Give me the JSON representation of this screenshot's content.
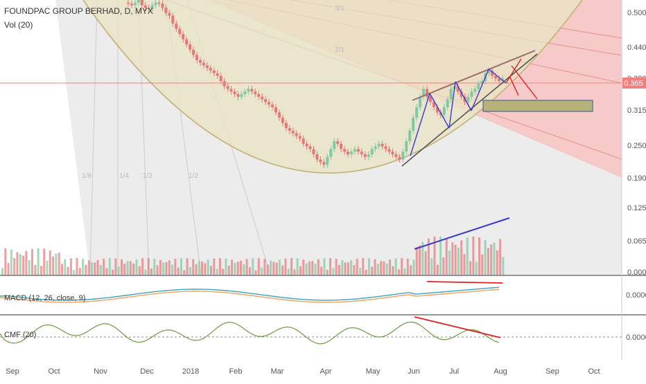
{
  "header": {
    "symbol_line": "FOUNDPAC GROUP BERHAD, D, MYX",
    "volume_label": "Vol (20)"
  },
  "panels": {
    "macd_label": "MACD (12, 26, close, 9)",
    "cmf_label": "CMF (20)"
  },
  "colors": {
    "up": "#7fc9a3",
    "down": "#e47777",
    "price_line": "#f08080",
    "fan_fill": "#f4b8b8",
    "arc": "#c7b47a",
    "arrow_blue": "#3a3acd",
    "arrow_red": "#e02020",
    "macd_line": "#3aa3b8",
    "signal_line": "#f0a060",
    "cmf_line": "#6b9a3a",
    "box_fill": "#b7b17a"
  },
  "fib_labels": [
    "1/8",
    "1/4",
    "1/3",
    "1/2",
    "2/1",
    "3/1"
  ],
  "x_axis": [
    "Sep",
    "Oct",
    "Nov",
    "Dec",
    "2018",
    "Feb",
    "Mar",
    "Apr",
    "May",
    "Jun",
    "Jul",
    "Aug",
    "Sep",
    "Oct"
  ],
  "chart_data": [
    {
      "type": "candlestick",
      "title": "FOUNDPAC GROUP BERHAD, D, MYX",
      "y_ticks": [
        "0.500",
        "0.440",
        "0.380",
        "0.315",
        "0.250",
        "0.190"
      ],
      "last_price": "0.365",
      "ylim": [
        0.175,
        0.515
      ],
      "closes": [
        0.51,
        0.508,
        0.505,
        0.51,
        0.515,
        0.505,
        0.5,
        0.498,
        0.505,
        0.51,
        0.508,
        0.5,
        0.49,
        0.485,
        0.47,
        0.46,
        0.45,
        0.44,
        0.43,
        0.42,
        0.41,
        0.4,
        0.395,
        0.39,
        0.385,
        0.38,
        0.375,
        0.37,
        0.36,
        0.35,
        0.345,
        0.34,
        0.335,
        0.33,
        0.335,
        0.34,
        0.345,
        0.34,
        0.335,
        0.33,
        0.325,
        0.32,
        0.315,
        0.31,
        0.3,
        0.29,
        0.28,
        0.27,
        0.265,
        0.26,
        0.255,
        0.25,
        0.24,
        0.235,
        0.23,
        0.22,
        0.21,
        0.205,
        0.2,
        0.215,
        0.23,
        0.245,
        0.24,
        0.23,
        0.225,
        0.22,
        0.225,
        0.23,
        0.225,
        0.22,
        0.215,
        0.22,
        0.23,
        0.235,
        0.24,
        0.235,
        0.23,
        0.225,
        0.22,
        0.215,
        0.21,
        0.225,
        0.245,
        0.265,
        0.29,
        0.31,
        0.33,
        0.345,
        0.33,
        0.32,
        0.31,
        0.3,
        0.295,
        0.31,
        0.325,
        0.345,
        0.35,
        0.34,
        0.33,
        0.32,
        0.33,
        0.34,
        0.345,
        0.355,
        0.36,
        0.375,
        0.38,
        0.37,
        0.365,
        0.36,
        0.365
      ]
    },
    {
      "type": "bar",
      "title": "Vol (20)",
      "y_ticks": [
        "0.125",
        "0.065",
        "0.000"
      ]
    },
    {
      "type": "line",
      "title": "MACD (12, 26, close, 9)",
      "y_ticks": [
        "0.0000"
      ]
    },
    {
      "type": "line",
      "title": "CMF (20)",
      "y_ticks": [
        "0.0000"
      ]
    }
  ]
}
